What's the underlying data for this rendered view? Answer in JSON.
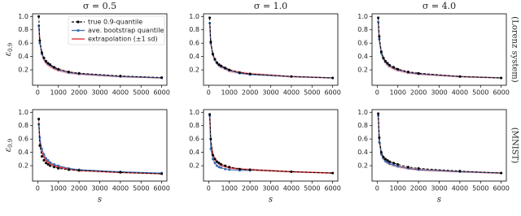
{
  "figure": {
    "legend": [
      {
        "name": "true 0.9-quantile",
        "color": "#000000",
        "dash": true,
        "marker": true
      },
      {
        "name": "ave. bootstrap quantile",
        "color": "#3b6fb6",
        "dash": false,
        "marker": true
      },
      {
        "name": "extrapolation (±1 sd)",
        "color": "#e0252b",
        "dash": false,
        "marker": false
      }
    ],
    "legend_corner": "upper right",
    "row_labels": [
      "(Lorenz system)",
      "(MNIST)"
    ],
    "ylabel": {
      "symbol": "ε",
      "subscript": "0.9"
    },
    "xlabel": "s"
  },
  "chart_data": [
    {
      "type": "line",
      "title": "σ = 0.5",
      "xlim": [
        -250,
        6250
      ],
      "ylim": [
        -0.03,
        1.04
      ],
      "xticks": [
        0,
        1000,
        2000,
        3000,
        4000,
        5000,
        6000
      ],
      "yticks": [
        0.2,
        0.4,
        0.6,
        0.8,
        {
          "value": 1,
          "label": "1.0"
        }
      ],
      "x": [
        50,
        100,
        200,
        300,
        400,
        500,
        600,
        800,
        1000,
        1500,
        2000,
        4000,
        6000
      ],
      "series": [
        {
          "values": [
            1.0,
            0.64,
            0.46,
            0.38,
            0.33,
            0.3,
            0.28,
            0.24,
            0.21,
            0.17,
            0.15,
            0.11,
            0.085
          ]
        },
        {
          "values": [
            0.86,
            0.6,
            0.44,
            0.37,
            0.32,
            0.29,
            0.27,
            0.23,
            0.2,
            0.16,
            0.14,
            0.1,
            0.08
          ]
        },
        {
          "values": [
            0.88,
            0.62,
            0.44,
            0.36,
            0.31,
            0.28,
            0.26,
            0.22,
            0.2,
            0.16,
            0.14,
            0.1,
            0.08
          ],
          "sd": [
            0.06,
            0.05,
            0.045,
            0.04,
            0.035,
            0.035,
            0.03,
            0.03,
            0.03,
            0.025,
            0.02,
            0.015,
            0.01
          ]
        }
      ]
    },
    {
      "type": "line",
      "title": "σ = 1.0",
      "xlim": [
        -250,
        6250
      ],
      "ylim": [
        -0.03,
        1.04
      ],
      "xticks": [
        0,
        1000,
        2000,
        3000,
        4000,
        5000,
        6000
      ],
      "yticks": [
        0.2,
        0.4,
        0.6,
        0.8,
        {
          "value": 1,
          "label": "1.0"
        }
      ],
      "x": [
        50,
        100,
        200,
        300,
        400,
        500,
        600,
        800,
        1000,
        1500,
        2000,
        4000,
        6000
      ],
      "series": [
        {
          "values": [
            0.98,
            0.62,
            0.44,
            0.36,
            0.31,
            0.28,
            0.26,
            0.23,
            0.2,
            0.16,
            0.14,
            0.1,
            0.08
          ]
        },
        {
          "values": [
            0.9,
            0.6,
            0.43,
            0.35,
            0.3,
            0.27,
            0.25,
            0.22,
            0.19,
            0.15,
            0.13,
            0.1,
            0.08
          ]
        },
        {
          "values": [
            0.9,
            0.6,
            0.43,
            0.35,
            0.3,
            0.27,
            0.25,
            0.22,
            0.19,
            0.16,
            0.14,
            0.1,
            0.08
          ],
          "sd": [
            0.06,
            0.05,
            0.045,
            0.04,
            0.035,
            0.035,
            0.03,
            0.03,
            0.03,
            0.025,
            0.02,
            0.015,
            0.01
          ]
        }
      ]
    },
    {
      "type": "line",
      "title": "σ = 4.0",
      "xlim": [
        -250,
        6250
      ],
      "ylim": [
        -0.03,
        1.04
      ],
      "xticks": [
        0,
        1000,
        2000,
        3000,
        4000,
        5000,
        6000
      ],
      "yticks": [
        0.2,
        0.4,
        0.6,
        0.8,
        {
          "value": 1,
          "label": "1.0"
        }
      ],
      "x": [
        50,
        100,
        200,
        300,
        400,
        500,
        600,
        800,
        1000,
        1500,
        2000,
        4000,
        6000
      ],
      "series": [
        {
          "values": [
            0.98,
            0.7,
            0.47,
            0.38,
            0.33,
            0.3,
            0.27,
            0.24,
            0.21,
            0.17,
            0.15,
            0.1,
            0.08
          ]
        },
        {
          "values": [
            0.92,
            0.66,
            0.45,
            0.37,
            0.32,
            0.29,
            0.26,
            0.23,
            0.2,
            0.16,
            0.14,
            0.1,
            0.08
          ]
        },
        {
          "values": [
            0.92,
            0.65,
            0.45,
            0.37,
            0.32,
            0.28,
            0.26,
            0.22,
            0.2,
            0.16,
            0.14,
            0.1,
            0.08
          ],
          "sd": [
            0.07,
            0.06,
            0.05,
            0.045,
            0.04,
            0.04,
            0.035,
            0.03,
            0.03,
            0.025,
            0.02,
            0.015,
            0.01
          ]
        }
      ]
    },
    {
      "type": "line",
      "xlim": [
        -250,
        6250
      ],
      "ylim": [
        -0.03,
        1.04
      ],
      "xticks": [
        0,
        1000,
        2000,
        3000,
        4000,
        5000,
        6000
      ],
      "yticks": [
        0.2,
        0.4,
        0.6,
        0.8,
        {
          "value": 1,
          "label": "1.0"
        }
      ],
      "x": [
        50,
        100,
        200,
        300,
        400,
        500,
        600,
        800,
        1000,
        1500,
        2000,
        4000,
        6000
      ],
      "series": [
        {
          "values": [
            0.9,
            0.5,
            0.34,
            0.28,
            0.24,
            0.22,
            0.2,
            0.18,
            0.16,
            0.14,
            0.13,
            0.1,
            0.08
          ]
        },
        {
          "values": [
            0.82,
            0.62,
            0.45,
            0.37,
            0.31,
            0.28,
            0.25,
            0.22,
            0.2,
            0.16,
            0.14,
            0.11,
            0.09
          ]
        },
        {
          "values": [
            0.85,
            0.58,
            0.4,
            0.33,
            0.28,
            0.25,
            0.23,
            0.2,
            0.18,
            0.15,
            0.13,
            0.1,
            0.08
          ],
          "sd": [
            0.06,
            0.05,
            0.045,
            0.04,
            0.035,
            0.03,
            0.03,
            0.025,
            0.025,
            0.02,
            0.02,
            0.015,
            0.01
          ]
        }
      ]
    },
    {
      "type": "line",
      "xlim": [
        -250,
        6250
      ],
      "ylim": [
        -0.03,
        1.04
      ],
      "xticks": [
        0,
        1000,
        2000,
        3000,
        4000,
        5000,
        6000
      ],
      "yticks": [
        0.2,
        0.4,
        0.6,
        0.8,
        {
          "value": 1,
          "label": "1.0"
        }
      ],
      "x": [
        50,
        100,
        200,
        300,
        400,
        500,
        600,
        800,
        1000,
        1500,
        2000,
        4000,
        6000
      ],
      "series": [
        {
          "values": [
            0.97,
            0.6,
            0.36,
            0.3,
            0.26,
            0.24,
            0.22,
            0.2,
            0.18,
            0.15,
            0.14,
            0.11,
            0.09
          ]
        },
        {
          "values": [
            0.95,
            0.45,
            0.3,
            0.24,
            0.2,
            0.18,
            0.17,
            0.15,
            0.14,
            0.13,
            0.13,
            null,
            null
          ]
        },
        {
          "values": [
            0.98,
            0.55,
            0.37,
            0.3,
            0.26,
            0.23,
            0.21,
            0.19,
            0.17,
            0.15,
            0.14,
            0.11,
            0.09
          ],
          "sd": [
            0.06,
            0.05,
            0.045,
            0.04,
            0.035,
            0.03,
            0.03,
            0.025,
            0.025,
            0.02,
            0.02,
            0.015,
            0.01
          ]
        }
      ]
    },
    {
      "type": "line",
      "xlim": [
        -250,
        6250
      ],
      "ylim": [
        -0.03,
        1.04
      ],
      "xticks": [
        0,
        1000,
        2000,
        3000,
        4000,
        5000,
        6000
      ],
      "yticks": [
        0.2,
        0.4,
        0.6,
        0.8,
        {
          "value": 1,
          "label": "1.0"
        }
      ],
      "x": [
        50,
        100,
        200,
        300,
        400,
        500,
        600,
        800,
        1000,
        1500,
        2000,
        4000,
        6000
      ],
      "series": [
        {
          "values": [
            0.98,
            0.62,
            0.4,
            0.33,
            0.3,
            0.28,
            0.26,
            0.24,
            0.22,
            0.18,
            0.16,
            0.12,
            0.09
          ]
        },
        {
          "values": [
            0.95,
            0.55,
            0.37,
            0.31,
            0.27,
            0.25,
            0.23,
            0.21,
            0.19,
            0.16,
            0.14,
            0.11,
            0.09
          ]
        },
        {
          "values": [
            0.98,
            0.57,
            0.38,
            0.31,
            0.27,
            0.25,
            0.23,
            0.21,
            0.19,
            0.16,
            0.14,
            0.11,
            0.09
          ],
          "sd": [
            0.06,
            0.05,
            0.045,
            0.04,
            0.035,
            0.03,
            0.03,
            0.025,
            0.025,
            0.02,
            0.02,
            0.015,
            0.01
          ]
        }
      ]
    }
  ]
}
